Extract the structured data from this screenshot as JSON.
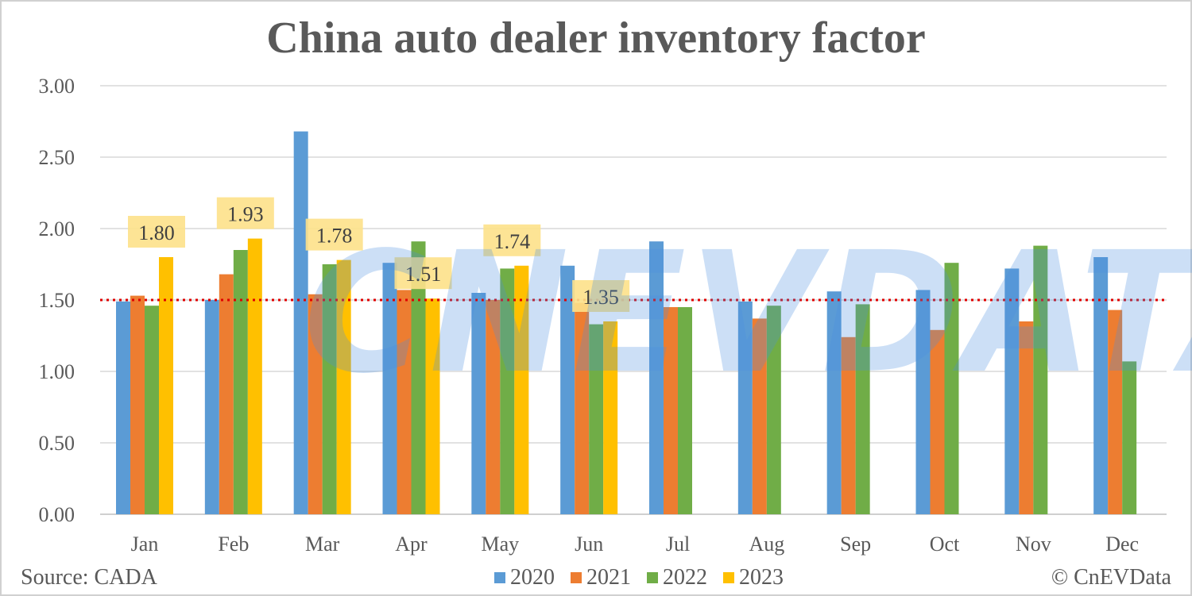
{
  "chart_data": {
    "type": "bar",
    "title": "China auto dealer inventory factor",
    "categories": [
      "Jan",
      "Feb",
      "Mar",
      "Apr",
      "May",
      "Jun",
      "Jul",
      "Aug",
      "Sep",
      "Oct",
      "Nov",
      "Dec"
    ],
    "series": [
      {
        "name": "2020",
        "color": "#5b9bd5",
        "values": [
          1.49,
          1.5,
          2.68,
          1.76,
          1.55,
          1.74,
          1.91,
          1.49,
          1.56,
          1.57,
          1.72,
          1.8
        ]
      },
      {
        "name": "2021",
        "color": "#ed7d31",
        "values": [
          1.53,
          1.68,
          1.54,
          1.57,
          1.5,
          1.48,
          1.45,
          1.37,
          1.24,
          1.29,
          1.35,
          1.43
        ]
      },
      {
        "name": "2022",
        "color": "#70ad47",
        "values": [
          1.46,
          1.85,
          1.75,
          1.91,
          1.72,
          1.33,
          1.45,
          1.46,
          1.47,
          1.76,
          1.88,
          1.07
        ]
      },
      {
        "name": "2023",
        "color": "#ffc000",
        "values": [
          1.8,
          1.93,
          1.78,
          1.51,
          1.74,
          1.35,
          null,
          null,
          null,
          null,
          null,
          null
        ]
      }
    ],
    "data_labels": {
      "series": "2023",
      "labels": [
        "1.80",
        "1.93",
        "1.78",
        "1.51",
        "1.74",
        "1.35"
      ]
    },
    "y_ticks": [
      "0.00",
      "0.50",
      "1.00",
      "1.50",
      "2.00",
      "2.50",
      "3.00"
    ],
    "ylim": [
      0,
      3
    ],
    "reference_line": {
      "value": 1.5,
      "color": "#e00000",
      "style": "dotted"
    },
    "grid": true,
    "legend_position": "bottom",
    "xlabel": "",
    "ylabel": ""
  },
  "footer": {
    "source": "Source: CADA",
    "credit": "© CnEVData"
  },
  "watermark": "CNEVDATA"
}
